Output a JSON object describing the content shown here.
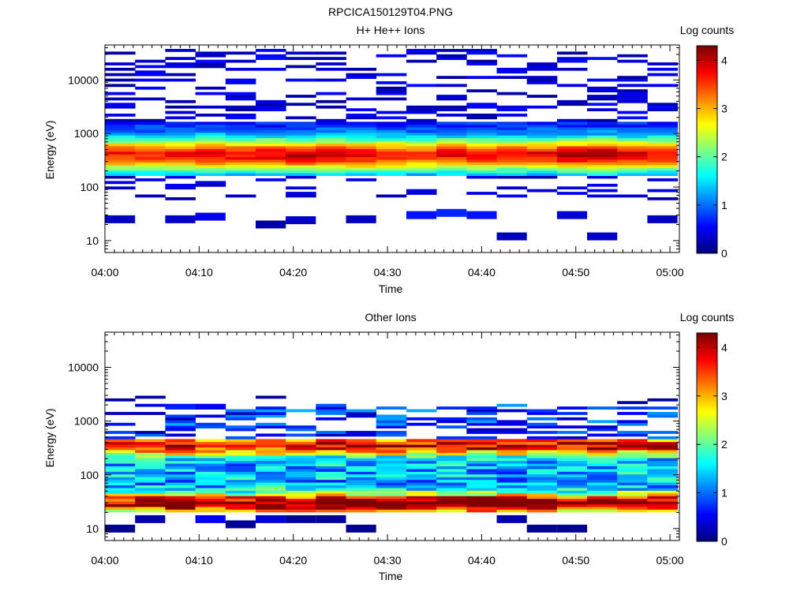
{
  "figure_title": "RPCICA150129T04.PNG",
  "chart_data": [
    {
      "type": "heatmap",
      "title": "H+ He++ Ions",
      "xlabel": "Time",
      "ylabel": "Energy (eV)",
      "x_ticks": [
        "04:00",
        "04:10",
        "04:20",
        "04:30",
        "04:40",
        "04:50",
        "05:00"
      ],
      "x_range_minutes": [
        0,
        61
      ],
      "y_scale": "log",
      "y_range": [
        6,
        45000
      ],
      "y_ticks": [
        10,
        100,
        1000,
        10000
      ],
      "y_tick_labels": [
        "10",
        "100",
        "1000",
        "10000"
      ],
      "colorbar": {
        "label": "Log counts",
        "range": [
          0,
          4.3
        ],
        "ticks": [
          0,
          1,
          2,
          3,
          4
        ],
        "tick_labels": [
          "0",
          "1",
          "2",
          "3",
          "4"
        ],
        "colormap": "jet"
      },
      "time_columns_minutes": [
        0,
        3.2,
        6.4,
        9.6,
        12.8,
        16.0,
        19.2,
        22.4,
        25.6,
        28.8,
        32.0,
        35.2,
        38.4,
        41.6,
        44.8,
        48.0,
        51.2,
        54.4,
        57.6
      ],
      "column_width_minutes": 3.2,
      "peak_energy_ev": 400,
      "peak_log_counts_by_column": [
        3.1,
        3.0,
        3.1,
        3.2,
        3.2,
        3.3,
        3.4,
        3.3,
        3.3,
        3.1,
        3.0,
        3.2,
        3.1,
        3.1,
        3.2,
        3.4,
        3.6,
        3.3,
        3.1
      ],
      "main_band_ev": [
        170,
        1700
      ],
      "low_energy_signal": [
        {
          "t": 0.0,
          "e": 25,
          "v": 0.25
        },
        {
          "t": 6.4,
          "e": 25,
          "v": 0.3
        },
        {
          "t": 9.6,
          "e": 28,
          "v": 0.5
        },
        {
          "t": 16.0,
          "e": 20,
          "v": 0.15
        },
        {
          "t": 19.2,
          "e": 24,
          "v": 0.3
        },
        {
          "t": 25.6,
          "e": 25,
          "v": 0.25
        },
        {
          "t": 32.0,
          "e": 30,
          "v": 0.6
        },
        {
          "t": 35.2,
          "e": 33,
          "v": 0.7
        },
        {
          "t": 38.4,
          "e": 30,
          "v": 0.6
        },
        {
          "t": 41.6,
          "e": 12,
          "v": 0.25
        },
        {
          "t": 48.0,
          "e": 30,
          "v": 0.35
        },
        {
          "t": 51.2,
          "e": 12,
          "v": 0.3
        },
        {
          "t": 57.6,
          "e": 25,
          "v": 0.25
        }
      ]
    },
    {
      "type": "heatmap",
      "title": "Other Ions",
      "xlabel": "Time",
      "ylabel": "Energy (eV)",
      "x_ticks": [
        "04:00",
        "04:10",
        "04:20",
        "04:30",
        "04:40",
        "04:50",
        "05:00"
      ],
      "x_range_minutes": [
        0,
        61
      ],
      "y_scale": "log",
      "y_range": [
        6,
        45000
      ],
      "y_ticks": [
        10,
        100,
        1000,
        10000
      ],
      "y_tick_labels": [
        "10",
        "100",
        "1000",
        "10000"
      ],
      "colorbar": {
        "label": "Log counts",
        "range": [
          0,
          4.3
        ],
        "ticks": [
          0,
          1,
          2,
          3,
          4
        ],
        "tick_labels": [
          "0",
          "1",
          "2",
          "3",
          "4"
        ],
        "colormap": "jet"
      },
      "time_columns_minutes": [
        0,
        3.2,
        6.4,
        9.6,
        12.8,
        16.0,
        19.2,
        22.4,
        25.6,
        28.8,
        32.0,
        35.2,
        38.4,
        41.6,
        44.8,
        48.0,
        51.2,
        54.4,
        57.6
      ],
      "column_width_minutes": 3.2,
      "peak_energy_ev": 30,
      "peak_log_counts_by_column": [
        2.8,
        3.1,
        3.4,
        3.1,
        3.0,
        3.2,
        3.3,
        3.2,
        3.3,
        3.1,
        3.5,
        3.5,
        3.6,
        3.5,
        3.3,
        3.0,
        2.9,
        3.2,
        3.1
      ],
      "secondary_band_ev": [
        250,
        500
      ],
      "main_band_ev": [
        20,
        2000
      ],
      "low_energy_signal": [
        {
          "t": 0.0,
          "e": 10,
          "v": 0.1
        },
        {
          "t": 3.2,
          "e": 15,
          "v": 0.2
        },
        {
          "t": 9.6,
          "e": 15,
          "v": 0.5
        },
        {
          "t": 12.8,
          "e": 12,
          "v": 0.1
        },
        {
          "t": 16.0,
          "e": 15,
          "v": 0.35
        },
        {
          "t": 19.2,
          "e": 15,
          "v": 0.1
        },
        {
          "t": 22.4,
          "e": 15,
          "v": 0.1
        },
        {
          "t": 25.6,
          "e": 10,
          "v": 0.1
        },
        {
          "t": 41.6,
          "e": 15,
          "v": 0.2
        },
        {
          "t": 44.8,
          "e": 10,
          "v": 0.1
        },
        {
          "t": 48.0,
          "e": 10,
          "v": 0.1
        }
      ]
    }
  ]
}
